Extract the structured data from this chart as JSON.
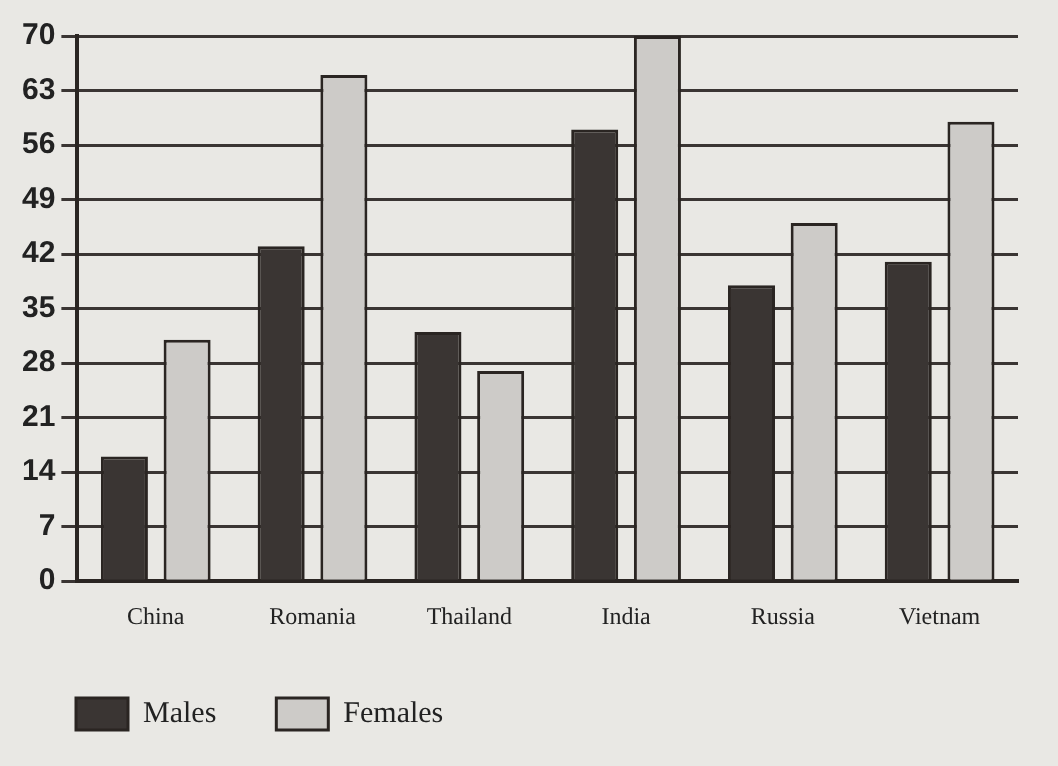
{
  "chart_data": {
    "type": "bar",
    "categories": [
      "China",
      "Romania",
      "Thailand",
      "India",
      "Russia",
      "Vietnam"
    ],
    "series": [
      {
        "name": "Males",
        "color": "#3a3533",
        "values": [
          16,
          43,
          32,
          58,
          38,
          41
        ]
      },
      {
        "name": "Females",
        "color": "#cdcbc8",
        "values": [
          31,
          65,
          27,
          70,
          46,
          59
        ]
      }
    ],
    "ylim": [
      0,
      70
    ],
    "yticks": [
      0,
      7,
      14,
      21,
      28,
      35,
      42,
      49,
      56,
      63,
      70
    ],
    "grid": "y",
    "legend": "bottom"
  }
}
